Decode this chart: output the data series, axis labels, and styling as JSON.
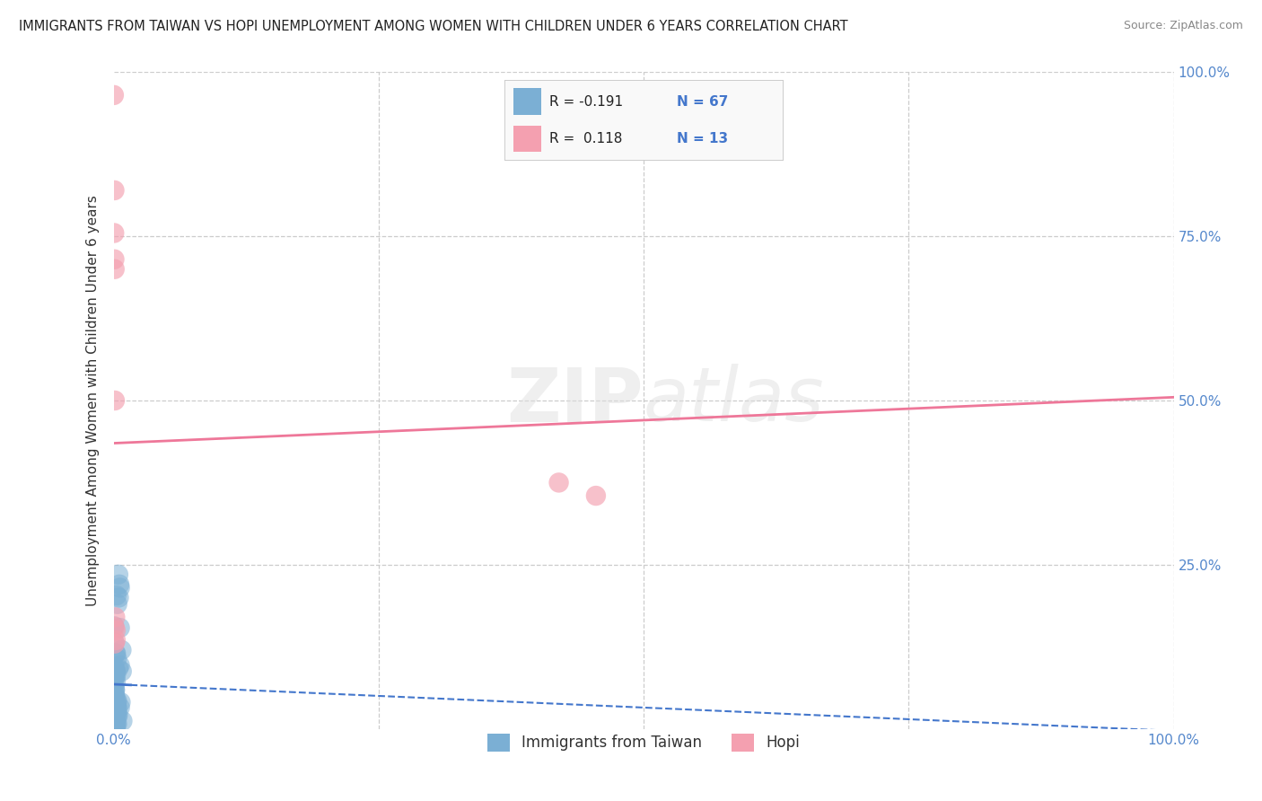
{
  "title": "IMMIGRANTS FROM TAIWAN VS HOPI UNEMPLOYMENT AMONG WOMEN WITH CHILDREN UNDER 6 YEARS CORRELATION CHART",
  "source": "Source: ZipAtlas.com",
  "ylabel": "Unemployment Among Women with Children Under 6 years",
  "background_color": "#ffffff",
  "watermark": "ZIPatlas",
  "legend_r1": "R = -0.191",
  "legend_n1": "N = 67",
  "legend_r2": "R =  0.118",
  "legend_n2": "N = 13",
  "blue_color": "#7bafd4",
  "pink_color": "#f4a0b0",
  "blue_line_color": "#4477cc",
  "pink_line_color": "#ee7799",
  "xlim": [
    0.0,
    1.0
  ],
  "ylim": [
    0.0,
    1.0
  ],
  "pink_trend_y_start": 0.435,
  "pink_trend_y_end": 0.505,
  "blue_trend_y_start": 0.068,
  "blue_trend_y_end": -0.003,
  "blue_solid_xend": 0.016
}
